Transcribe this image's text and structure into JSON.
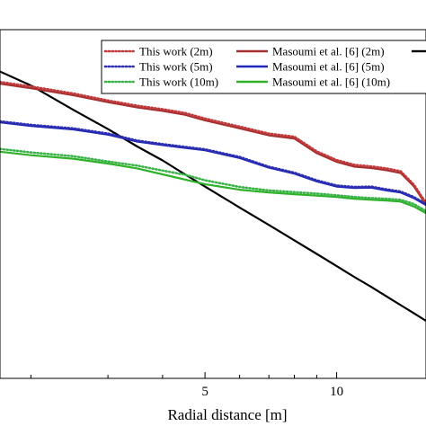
{
  "chart_data": {
    "type": "line",
    "title": "",
    "xlabel": "Radial distance [m]",
    "ylabel": "",
    "x_scale": "log",
    "xlim": [
      1.7,
      16
    ],
    "ylim": [
      0,
      1
    ],
    "x_ticks": [
      5,
      10
    ],
    "x_tick_labels": [
      "5",
      "10"
    ],
    "grid": false,
    "legend_position": "top-right",
    "x": [
      1.7,
      2,
      2.5,
      3,
      3.5,
      4,
      4.5,
      5,
      6,
      7,
      8,
      9,
      10,
      11,
      12,
      13,
      14,
      15,
      16
    ],
    "series": [
      {
        "name": "This work (2m)",
        "style": "dotted",
        "color": "#c0393b",
        "values": [
          0.85,
          0.837,
          0.817,
          0.797,
          0.782,
          0.772,
          0.761,
          0.745,
          0.722,
          0.702,
          0.693,
          0.651,
          0.626,
          0.612,
          0.608,
          0.602,
          0.594,
          0.556,
          0.503
        ]
      },
      {
        "name": "This work (5m)",
        "style": "dotted",
        "color": "#2d2fb0",
        "values": [
          0.737,
          0.727,
          0.717,
          0.702,
          0.682,
          0.672,
          0.664,
          0.657,
          0.635,
          0.607,
          0.59,
          0.568,
          0.553,
          0.549,
          0.55,
          0.542,
          0.536,
          0.52,
          0.5
        ]
      },
      {
        "name": "This work (10m)",
        "style": "dotted",
        "color": "#3cb34a",
        "values": [
          0.658,
          0.648,
          0.637,
          0.622,
          0.61,
          0.596,
          0.584,
          0.568,
          0.549,
          0.539,
          0.534,
          0.53,
          0.525,
          0.52,
          0.517,
          0.515,
          0.512,
          0.5,
          0.48
        ]
      },
      {
        "name": "Masoumi et al. [6] (2m)",
        "style": "solid",
        "color": "#a72f2f",
        "values": [
          0.845,
          0.832,
          0.812,
          0.792,
          0.777,
          0.767,
          0.756,
          0.74,
          0.717,
          0.697,
          0.688,
          0.646,
          0.621,
          0.607,
          0.603,
          0.597,
          0.589,
          0.551,
          0.498
        ]
      },
      {
        "name": "Masoumi et al. [6] (5m)",
        "style": "solid",
        "color": "#2127b8",
        "values": [
          0.734,
          0.724,
          0.714,
          0.699,
          0.679,
          0.669,
          0.661,
          0.654,
          0.632,
          0.604,
          0.587,
          0.565,
          0.55,
          0.546,
          0.547,
          0.539,
          0.533,
          0.517,
          0.497
        ]
      },
      {
        "name": "Masoumi et al. [6] (10m)",
        "style": "solid",
        "color": "#2fb12a",
        "values": [
          0.65,
          0.64,
          0.63,
          0.616,
          0.602,
          0.585,
          0.57,
          0.557,
          0.541,
          0.533,
          0.528,
          0.524,
          0.52,
          0.515,
          0.512,
          0.51,
          0.507,
          0.493,
          0.474
        ]
      },
      {
        "name": "",
        "style": "solid",
        "color": "#000000",
        "values": [
          0.88,
          0.84,
          0.77,
          0.715,
          0.665,
          0.625,
          0.585,
          0.55,
          0.49,
          0.44,
          0.396,
          0.357,
          0.322,
          0.29,
          0.262,
          0.235,
          0.21,
          0.187,
          0.165
        ]
      }
    ]
  }
}
